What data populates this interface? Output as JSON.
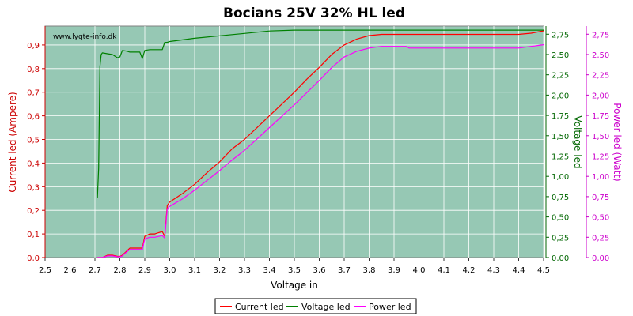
{
  "chart_data": {
    "type": "line",
    "title": "Bocians 25V 32% HL led",
    "xlabel": "Voltage in",
    "watermark": "www.lygte-info.dk",
    "xlim": [
      2.5,
      4.5
    ],
    "xticks": [
      "2,5",
      "2,6",
      "2,7",
      "2,8",
      "2,9",
      "3,0",
      "3,1",
      "3,2",
      "3,3",
      "3,4",
      "3,5",
      "3,6",
      "3,7",
      "3,8",
      "3,9",
      "4,0",
      "4,1",
      "4,2",
      "4,3",
      "4,4",
      "4,5"
    ],
    "axes": {
      "left": {
        "label": "Current led (Ampere)",
        "min": 0,
        "max": 0.98,
        "ticks": [
          "0,0",
          "0,1",
          "0,2",
          "0,3",
          "0,4",
          "0,5",
          "0,6",
          "0,7",
          "0,8",
          "0,9"
        ],
        "tick_values": [
          0,
          0.1,
          0.2,
          0.3,
          0.4,
          0.5,
          0.6,
          0.7,
          0.8,
          0.9
        ],
        "color": "#cc0000"
      },
      "right1": {
        "label": "Voltage led",
        "min": 0,
        "max": 2.85,
        "ticks": [
          "0,00",
          "0,25",
          "0,50",
          "0,75",
          "1,00",
          "1,25",
          "1,50",
          "1,75",
          "2,00",
          "2,25",
          "2,50",
          "2,75"
        ],
        "tick_values": [
          0,
          0.25,
          0.5,
          0.75,
          1.0,
          1.25,
          1.5,
          1.75,
          2.0,
          2.25,
          2.5,
          2.75
        ],
        "color": "#006600"
      },
      "right2": {
        "label": "Power led (Watt)",
        "min": 0,
        "max": 2.85,
        "ticks": [
          "0,00",
          "0,25",
          "0,50",
          "0,75",
          "1,00",
          "1,25",
          "1,50",
          "1,75",
          "2,00",
          "2,25",
          "2,50",
          "2,75"
        ],
        "tick_values": [
          0,
          0.25,
          0.5,
          0.75,
          1.0,
          1.25,
          1.5,
          1.75,
          2.0,
          2.25,
          2.5,
          2.75
        ],
        "color": "#cc00cc"
      }
    },
    "grid": true,
    "legend_position": "bottom",
    "series": [
      {
        "name": "Current led",
        "axis": "left",
        "color": "#ff0000",
        "x": [
          2.71,
          2.72,
          2.73,
          2.75,
          2.77,
          2.79,
          2.8,
          2.81,
          2.82,
          2.84,
          2.86,
          2.88,
          2.89,
          2.9,
          2.92,
          2.94,
          2.97,
          2.98,
          2.99,
          3.0,
          3.05,
          3.1,
          3.15,
          3.2,
          3.25,
          3.3,
          3.35,
          3.4,
          3.45,
          3.5,
          3.55,
          3.6,
          3.65,
          3.7,
          3.75,
          3.8,
          3.85,
          3.9,
          3.95,
          4.0,
          4.1,
          4.2,
          4.3,
          4.4,
          4.45,
          4.5
        ],
        "y": [
          0.0,
          0.0,
          0.0,
          0.01,
          0.01,
          0.005,
          0.005,
          0.01,
          0.02,
          0.04,
          0.04,
          0.04,
          0.04,
          0.09,
          0.1,
          0.1,
          0.11,
          0.09,
          0.22,
          0.235,
          0.27,
          0.31,
          0.36,
          0.405,
          0.46,
          0.5,
          0.55,
          0.6,
          0.65,
          0.7,
          0.755,
          0.805,
          0.86,
          0.9,
          0.925,
          0.94,
          0.945,
          0.945,
          0.945,
          0.945,
          0.945,
          0.945,
          0.945,
          0.945,
          0.95,
          0.96
        ]
      },
      {
        "name": "Voltage led",
        "axis": "right1",
        "color": "#008000",
        "x": [
          2.71,
          2.715,
          2.72,
          2.725,
          2.73,
          2.75,
          2.77,
          2.79,
          2.8,
          2.81,
          2.83,
          2.84,
          2.86,
          2.88,
          2.89,
          2.9,
          2.92,
          2.97,
          2.98,
          2.99,
          3.0,
          3.1,
          3.2,
          3.3,
          3.4,
          3.5,
          3.6,
          3.7,
          3.8,
          3.9,
          4.0,
          4.2,
          4.4,
          4.5
        ],
        "y": [
          0.73,
          1.1,
          2.35,
          2.5,
          2.52,
          2.51,
          2.5,
          2.46,
          2.47,
          2.55,
          2.54,
          2.53,
          2.53,
          2.53,
          2.45,
          2.55,
          2.56,
          2.56,
          2.65,
          2.65,
          2.66,
          2.7,
          2.73,
          2.76,
          2.79,
          2.8,
          2.8,
          2.8,
          2.8,
          2.8,
          2.8,
          2.8,
          2.8,
          2.8
        ]
      },
      {
        "name": "Power led",
        "axis": "right2",
        "color": "#ff00ff",
        "x": [
          2.71,
          2.72,
          2.73,
          2.75,
          2.77,
          2.79,
          2.8,
          2.81,
          2.82,
          2.84,
          2.86,
          2.88,
          2.89,
          2.9,
          2.92,
          2.94,
          2.97,
          2.98,
          2.99,
          3.0,
          3.05,
          3.1,
          3.15,
          3.2,
          3.25,
          3.3,
          3.35,
          3.4,
          3.45,
          3.5,
          3.55,
          3.6,
          3.65,
          3.7,
          3.75,
          3.8,
          3.85,
          3.9,
          3.95,
          3.96,
          4.0,
          4.1,
          4.2,
          4.3,
          4.4,
          4.45,
          4.5
        ],
        "y": [
          0.0,
          0.0,
          0.0,
          0.02,
          0.02,
          0.01,
          0.01,
          0.02,
          0.05,
          0.1,
          0.1,
          0.1,
          0.1,
          0.23,
          0.25,
          0.25,
          0.27,
          0.24,
          0.6,
          0.63,
          0.72,
          0.83,
          0.95,
          1.07,
          1.2,
          1.32,
          1.46,
          1.6,
          1.74,
          1.88,
          2.03,
          2.18,
          2.34,
          2.47,
          2.54,
          2.58,
          2.6,
          2.6,
          2.6,
          2.58,
          2.58,
          2.58,
          2.58,
          2.58,
          2.58,
          2.6,
          2.62
        ]
      }
    ]
  },
  "legend": [
    {
      "name": "Current led",
      "color": "#ff0000"
    },
    {
      "name": "Voltage led",
      "color": "#008000"
    },
    {
      "name": "Power led",
      "color": "#ff00ff"
    }
  ]
}
